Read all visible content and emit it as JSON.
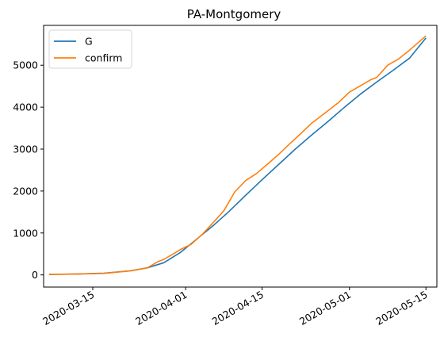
{
  "chart_data": {
    "type": "line",
    "title": "PA-Montgomery",
    "xlabel": "",
    "ylabel": "",
    "x_ticks": [
      "2020-03-15",
      "2020-04-01",
      "2020-04-15",
      "2020-05-01",
      "2020-05-15"
    ],
    "y_ticks": [
      0,
      1000,
      2000,
      3000,
      4000,
      5000
    ],
    "xlim": [
      "2020-03-06",
      "2020-05-17"
    ],
    "ylim": [
      -290,
      5950
    ],
    "grid": false,
    "legend_position": "top-left",
    "colors": {
      "G": "#1f77b4",
      "confirm": "#ff7f0e"
    },
    "series": [
      {
        "name": "G",
        "x": [
          "2020-03-07",
          "2020-03-12",
          "2020-03-17",
          "2020-03-22",
          "2020-03-25",
          "2020-03-28",
          "2020-03-31",
          "2020-04-03",
          "2020-04-06",
          "2020-04-09",
          "2020-04-12",
          "2020-04-15",
          "2020-04-18",
          "2020-04-21",
          "2020-04-24",
          "2020-04-27",
          "2020-04-30",
          "2020-05-03",
          "2020-05-06",
          "2020-05-09",
          "2020-05-12",
          "2020-05-15"
        ],
        "values": [
          10,
          20,
          40,
          100,
          170,
          290,
          530,
          850,
          1170,
          1520,
          1900,
          2270,
          2630,
          2990,
          3330,
          3650,
          3990,
          4310,
          4600,
          4880,
          5170,
          5650
        ]
      },
      {
        "name": "confirm",
        "x": [
          "2020-03-07",
          "2020-03-12",
          "2020-03-17",
          "2020-03-22",
          "2020-03-25",
          "2020-03-27",
          "2020-03-28",
          "2020-03-30",
          "2020-03-31",
          "2020-04-02",
          "2020-04-04",
          "2020-04-06",
          "2020-04-08",
          "2020-04-10",
          "2020-04-12",
          "2020-04-14",
          "2020-04-16",
          "2020-04-18",
          "2020-04-20",
          "2020-04-22",
          "2020-04-24",
          "2020-04-26",
          "2020-04-28",
          "2020-04-29",
          "2020-05-01",
          "2020-05-03",
          "2020-05-05",
          "2020-05-06",
          "2020-05-08",
          "2020-05-10",
          "2020-05-12",
          "2020-05-15"
        ],
        "values": [
          15,
          20,
          35,
          100,
          170,
          320,
          370,
          520,
          600,
          730,
          960,
          1240,
          1530,
          1980,
          2250,
          2420,
          2640,
          2870,
          3120,
          3360,
          3610,
          3810,
          4010,
          4110,
          4360,
          4510,
          4660,
          4710,
          5000,
          5150,
          5360,
          5700
        ]
      }
    ]
  }
}
